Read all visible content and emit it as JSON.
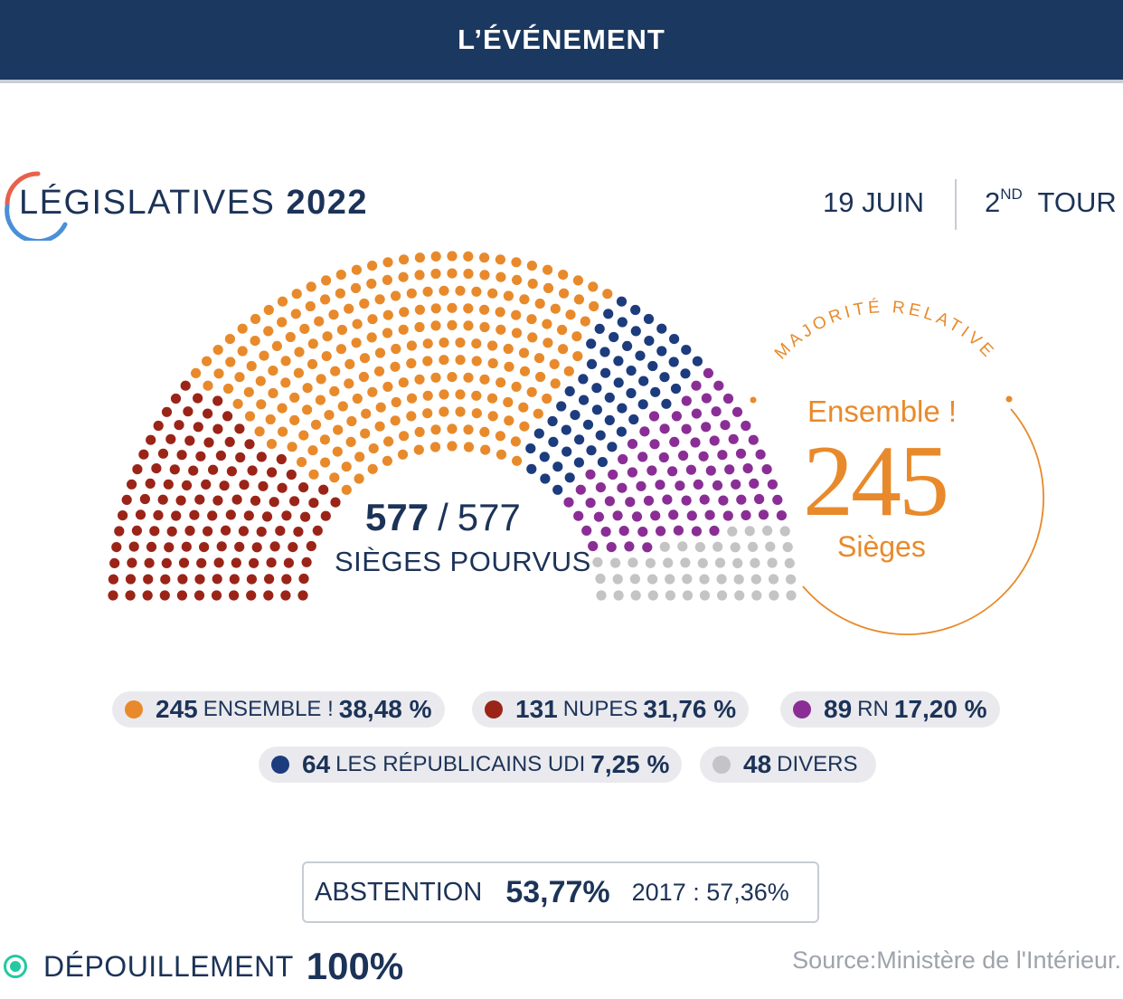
{
  "header": {
    "title": "L’ÉVÉNEMENT"
  },
  "event": {
    "title_light": "LÉGISLATIVES",
    "title_bold": "2022",
    "date": "19 JUIN",
    "round_num": "2",
    "round_sup": "ND",
    "round_word": "TOUR"
  },
  "center": {
    "filled": "577",
    "slash": "/",
    "total": "577",
    "label": "SIÈGES POURVUS"
  },
  "majority": {
    "caption": "MAJORITÉ RELATIVE",
    "party": "Ensemble !",
    "seats": "245",
    "unit": "Sièges"
  },
  "legend": [
    {
      "seats": "245",
      "name": "ENSEMBLE !",
      "pct": "38,48 %",
      "color": "#e88a2b"
    },
    {
      "seats": "131",
      "name": "NUPES",
      "pct": "31,76 %",
      "color": "#9b2418"
    },
    {
      "seats": "89",
      "name": "RN",
      "pct": "17,20 %",
      "color": "#8a2e96"
    },
    {
      "seats": "64",
      "name": "LES RÉPUBLICAINS UDI",
      "pct": "7,25 %",
      "color": "#1d3c7e"
    },
    {
      "seats": "48",
      "name": "DIVERS",
      "pct": "",
      "color": "#c4c4c6"
    }
  ],
  "abstention": {
    "label": "ABSTENTION",
    "value": "53,77%",
    "previous": "2017 : 57,36%"
  },
  "counting": {
    "label": "DÉPOUILLEMENT",
    "value": "100%"
  },
  "source": "Source:Ministère de l'Intérieur.",
  "chart_data": {
    "type": "hemicycle",
    "title": "LÉGISLATIVES 2022",
    "total_seats": 577,
    "series": [
      {
        "name": "NUPES",
        "seats": 131,
        "percent": 31.76,
        "color": "#9b2418"
      },
      {
        "name": "ENSEMBLE !",
        "seats": 245,
        "percent": 38.48,
        "color": "#e88a2b"
      },
      {
        "name": "LES RÉPUBLICAINS UDI",
        "seats": 64,
        "percent": 7.25,
        "color": "#1d3c7e"
      },
      {
        "name": "RN",
        "seats": 89,
        "percent": 17.2,
        "color": "#8a2e96"
      },
      {
        "name": "DIVERS",
        "seats": 48,
        "percent": null,
        "color": "#c4c4c6"
      }
    ]
  }
}
